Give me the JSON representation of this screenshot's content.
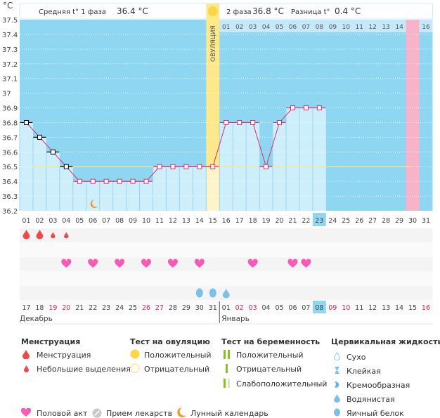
{
  "header": {
    "unit": "°C",
    "phase1_label": "Средняя t° 1 фаза",
    "phase1_value": "36.4 °C",
    "phase2_label": "2 фаза",
    "phase2_value": "36.8 °C",
    "diff_label": "Разница t°",
    "diff_value": "0.4 °C",
    "ovulation_label": "ОВУЛЯЦИЯ"
  },
  "chart_data": {
    "type": "line",
    "ylim": [
      36.2,
      37.5
    ],
    "yticks": [
      "37.5",
      "37.4",
      "37.3",
      "37.2",
      "37.1",
      "37",
      "36.9",
      "36.8",
      "36.7",
      "36.6",
      "36.5",
      "36.4",
      "36.3",
      "36.2"
    ],
    "cycle_days": [
      "01",
      "02",
      "03",
      "04",
      "05",
      "06",
      "07",
      "08",
      "09",
      "10",
      "11",
      "12",
      "13",
      "14",
      "15",
      "16",
      "17",
      "18",
      "19",
      "20",
      "21",
      "22",
      "23",
      "24",
      "25",
      "26",
      "27",
      "28",
      "29",
      "30",
      "31"
    ],
    "temperatures": [
      36.8,
      36.7,
      36.6,
      36.5,
      36.4,
      36.4,
      36.4,
      36.4,
      36.4,
      36.4,
      36.5,
      36.5,
      36.5,
      36.5,
      36.5,
      36.8,
      36.8,
      36.8,
      36.5,
      36.8,
      36.9,
      36.9,
      36.9,
      null,
      null,
      null,
      null,
      null,
      null,
      null,
      null
    ],
    "coverline": 36.5,
    "ovulation_day": 15,
    "today_cycle_day": 23,
    "expected_period_day": 30,
    "next_cycle_days": [
      "01",
      "02",
      "03",
      "04",
      "05",
      "06",
      "07",
      "08",
      "09",
      "10",
      "11",
      "12",
      "13",
      "14",
      "15",
      "16"
    ],
    "colors": {
      "sky": "#8fd6f2",
      "bar": "#cdeefb",
      "ovulation": "#fde98c",
      "ovulation_pale": "#fdf5c9",
      "period": "#f8b3c8",
      "line": "#d9306a",
      "coverline": "#f5e98a"
    }
  },
  "markers": {
    "menstruation_big": [
      1,
      2
    ],
    "menstruation_small": [
      3,
      4
    ],
    "intercourse": [
      4,
      6,
      8,
      10,
      12,
      14,
      18,
      21,
      22
    ],
    "egg_white": [
      14,
      15
    ],
    "watery": [
      16
    ],
    "moon": [
      6
    ]
  },
  "calendar": {
    "dates": [
      "17",
      "18",
      "19",
      "20",
      "21",
      "22",
      "23",
      "24",
      "25",
      "26",
      "27",
      "28",
      "29",
      "30",
      "31",
      "01",
      "02",
      "03",
      "04",
      "05",
      "06",
      "07",
      "08",
      "09",
      "10",
      "11",
      "12",
      "13",
      "14",
      "15",
      "16"
    ],
    "weekend": [
      3,
      4,
      10,
      11,
      17,
      18,
      24,
      25,
      31
    ],
    "today_index": 23,
    "month1": "Декабрь",
    "month2": "Январь"
  },
  "legend": {
    "menstruation": {
      "title": "Менструация",
      "items": [
        "Менструация",
        "Небольшие выделения"
      ]
    },
    "ovulation_test": {
      "title": "Тест на овуляцию",
      "items": [
        "Положительный",
        "Отрицательный"
      ]
    },
    "pregnancy_test": {
      "title": "Тест на беременность",
      "items": [
        "Положительный",
        "Отрицательный",
        "Слабоположительный"
      ]
    },
    "cervical": {
      "title": "Цервикальная жидкость",
      "items": [
        "Сухо",
        "Клейкая",
        "Кремообразная",
        "Водянистая",
        "Яичный белок"
      ]
    },
    "other": [
      "Половой акт",
      "Прием лекарств",
      "Лунный календарь"
    ]
  }
}
